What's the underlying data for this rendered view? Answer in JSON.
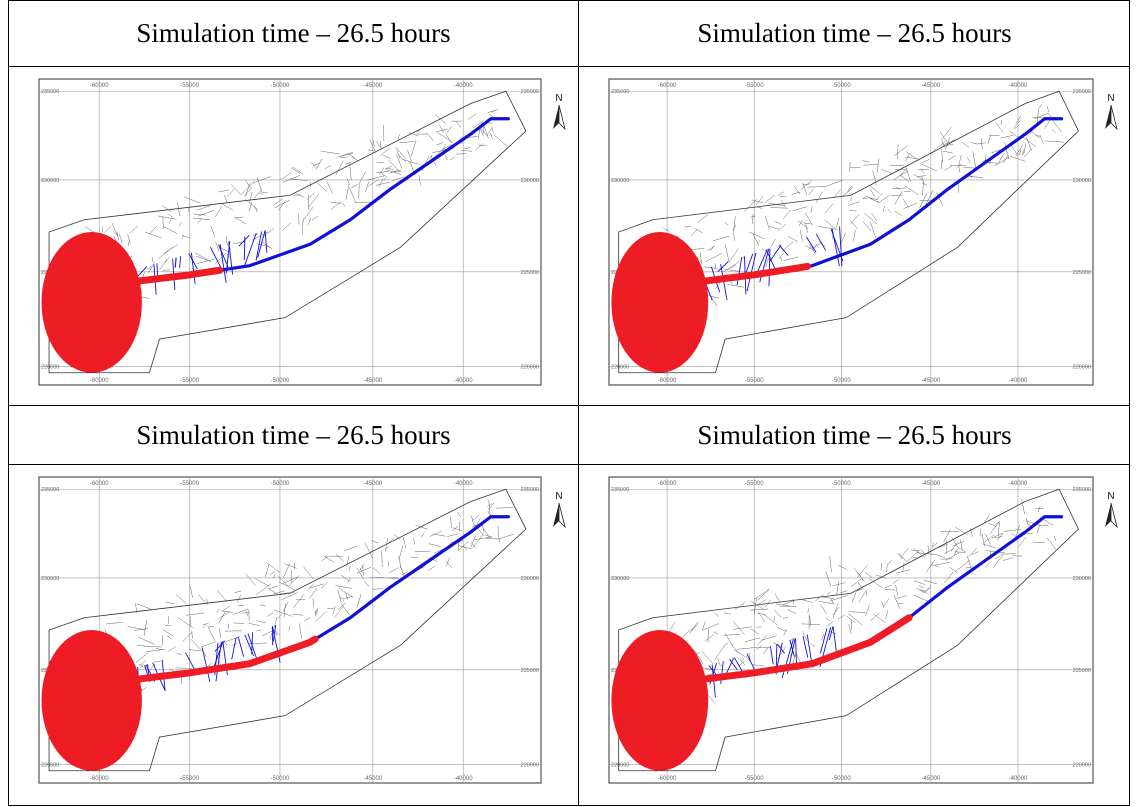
{
  "panels": [
    {
      "title": "Simulation time – 26.5 hours",
      "reach": 0.36
    },
    {
      "title": "Simulation time – 26.5 hours",
      "reach": 0.41
    },
    {
      "title": "Simulation time – 26.5 hours",
      "reach": 0.55
    },
    {
      "title": "Simulation time – 26.5 hours",
      "reach": 0.62
    }
  ],
  "map": {
    "x_ticks": [
      "-60000",
      "-55000",
      "-50000",
      "-45000",
      "-40000"
    ],
    "y_ticks": [
      "235000",
      "230000",
      "225000",
      "220000"
    ],
    "north_label": "N",
    "colors": {
      "plume": "#ee1c25",
      "river": "#1010d8",
      "streets": "#666666",
      "frame": "#555555"
    }
  }
}
